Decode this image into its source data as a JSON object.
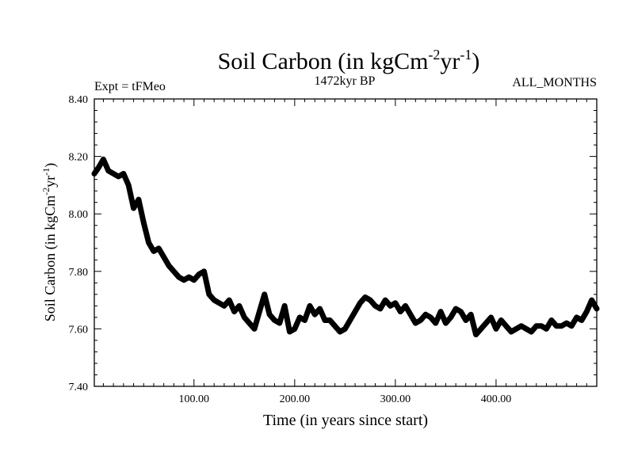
{
  "chart_data": {
    "type": "line",
    "title_main": "Soil Carbon (in kgCm",
    "title_sup1": "-2",
    "title_mid": "yr",
    "title_sup2": "-1",
    "title_end": ")",
    "subtitle_left": "Expt = tFMeo",
    "subtitle_center": "1472kyr BP",
    "subtitle_right": "ALL_MONTHS",
    "xlabel": "Time (in years since start)",
    "ylabel_main": "Soil Carbon (in kgCm",
    "ylabel_sup1": "-2",
    "ylabel_mid": "yr",
    "ylabel_sup2": "-1",
    "ylabel_end": ")",
    "xlim": [
      1,
      500
    ],
    "ylim": [
      7.4,
      8.4
    ],
    "xticks": [
      100,
      200,
      300,
      400
    ],
    "xtick_labels": [
      "100.00",
      "200.00",
      "300.00",
      "400.00"
    ],
    "yticks": [
      7.4,
      7.6,
      7.8,
      8.0,
      8.2,
      8.4
    ],
    "ytick_labels": [
      "7.40",
      "7.60",
      "7.80",
      "8.00",
      "8.20",
      "8.40"
    ],
    "series": [
      {
        "name": "Soil Carbon",
        "color": "#000000",
        "x": [
          1,
          5,
          10,
          15,
          20,
          25,
          30,
          35,
          40,
          45,
          50,
          55,
          60,
          65,
          70,
          75,
          80,
          85,
          90,
          95,
          100,
          105,
          110,
          115,
          120,
          125,
          130,
          135,
          140,
          145,
          150,
          155,
          160,
          165,
          170,
          175,
          180,
          185,
          190,
          195,
          200,
          205,
          210,
          215,
          220,
          225,
          230,
          235,
          240,
          245,
          250,
          255,
          260,
          265,
          270,
          275,
          280,
          285,
          290,
          295,
          300,
          305,
          310,
          315,
          320,
          325,
          330,
          335,
          340,
          345,
          350,
          355,
          360,
          365,
          370,
          375,
          380,
          385,
          390,
          395,
          400,
          405,
          410,
          415,
          420,
          425,
          430,
          435,
          440,
          445,
          450,
          455,
          460,
          465,
          470,
          475,
          480,
          485,
          490,
          495,
          500
        ],
        "y": [
          8.14,
          8.16,
          8.19,
          8.15,
          8.14,
          8.13,
          8.14,
          8.1,
          8.02,
          8.05,
          7.97,
          7.9,
          7.87,
          7.88,
          7.85,
          7.82,
          7.8,
          7.78,
          7.77,
          7.78,
          7.77,
          7.79,
          7.8,
          7.72,
          7.7,
          7.69,
          7.68,
          7.7,
          7.66,
          7.68,
          7.64,
          7.62,
          7.6,
          7.66,
          7.72,
          7.65,
          7.63,
          7.62,
          7.68,
          7.59,
          7.6,
          7.64,
          7.63,
          7.68,
          7.65,
          7.67,
          7.63,
          7.63,
          7.61,
          7.59,
          7.6,
          7.63,
          7.66,
          7.69,
          7.71,
          7.7,
          7.68,
          7.67,
          7.7,
          7.68,
          7.69,
          7.66,
          7.68,
          7.65,
          7.62,
          7.63,
          7.65,
          7.64,
          7.62,
          7.66,
          7.62,
          7.64,
          7.67,
          7.66,
          7.63,
          7.65,
          7.58,
          7.6,
          7.62,
          7.64,
          7.6,
          7.63,
          7.61,
          7.59,
          7.6,
          7.61,
          7.6,
          7.59,
          7.61,
          7.61,
          7.6,
          7.63,
          7.61,
          7.61,
          7.62,
          7.61,
          7.64,
          7.63,
          7.66,
          7.7,
          7.67
        ]
      }
    ]
  }
}
